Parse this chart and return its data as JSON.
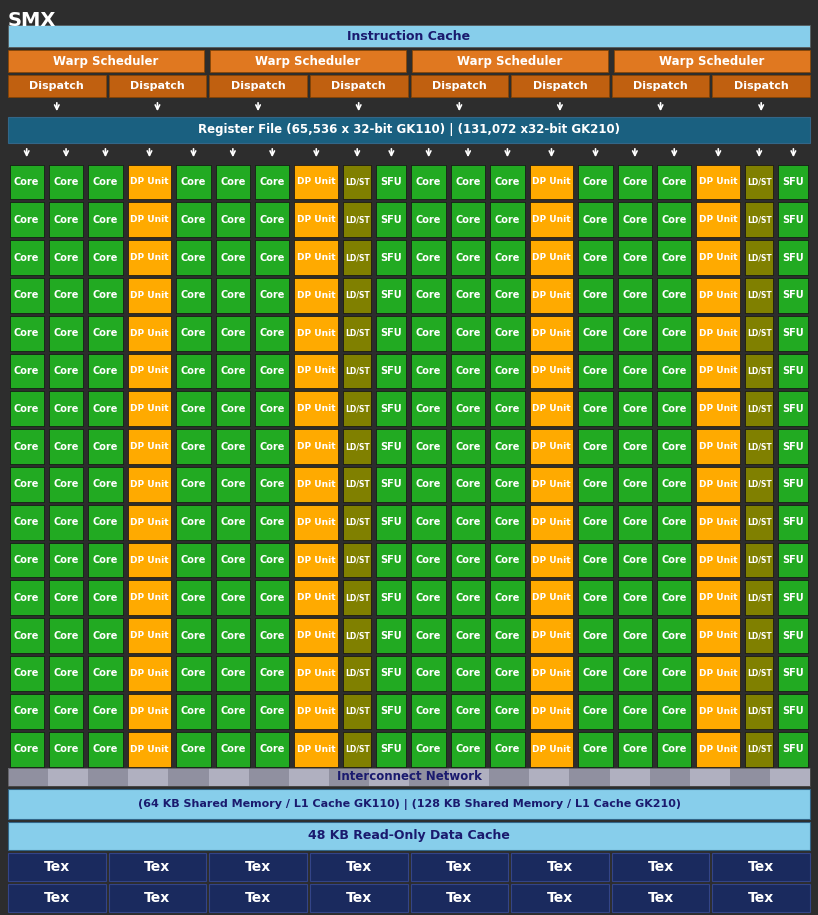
{
  "bg_color": "#2d2d2d",
  "title": "SMX",
  "title_color": "#ffffff",
  "title_fontsize": 14,
  "ic_text": "Instruction Cache",
  "ic_color": "#87ceeb",
  "ic_text_color": "#1a1a6e",
  "warp_color": "#e07820",
  "warp_text": "Warp Scheduler",
  "dispatch_color": "#c06010",
  "dispatch_text": "Dispatch",
  "rf_text": "Register File (65,536 x 32-bit GK110) | (131,072 x32-bit GK210)",
  "rf_color": "#1a6080",
  "rf_text_color": "#ffffff",
  "core_color": "#22aa22",
  "dp_color": "#ffaa00",
  "ldst_color": "#808000",
  "sfu_color": "#22aa22",
  "cell_edge_color": "#111111",
  "col_labels": [
    "Core",
    "Core",
    "Core",
    "DP Unit",
    "Core",
    "Core",
    "Core",
    "DP Unit",
    "LD/ST",
    "SFU",
    "Core",
    "Core",
    "Core",
    "DP Unit",
    "Core",
    "Core",
    "Core",
    "DP Unit",
    "LD/ST",
    "SFU"
  ],
  "num_rows": 16,
  "interconnect_text": "Interconnect Network",
  "interconnect_color": "#aaaacc",
  "interconnect_text_color": "#1a1a6e",
  "shared_text": "(64 KB Shared Memory / L1 Cache GK110) | (128 KB Shared Memory / L1 Cache GK210)",
  "shared_color": "#87ceeb",
  "shared_text_color": "#1a1a6e",
  "ro_text": "48 KB Read-Only Data Cache",
  "ro_color": "#87ceeb",
  "ro_text_color": "#1a1a6e",
  "tex_color": "#1a2a5e",
  "tex_text_color": "#ffffff",
  "tex_text": "Tex"
}
